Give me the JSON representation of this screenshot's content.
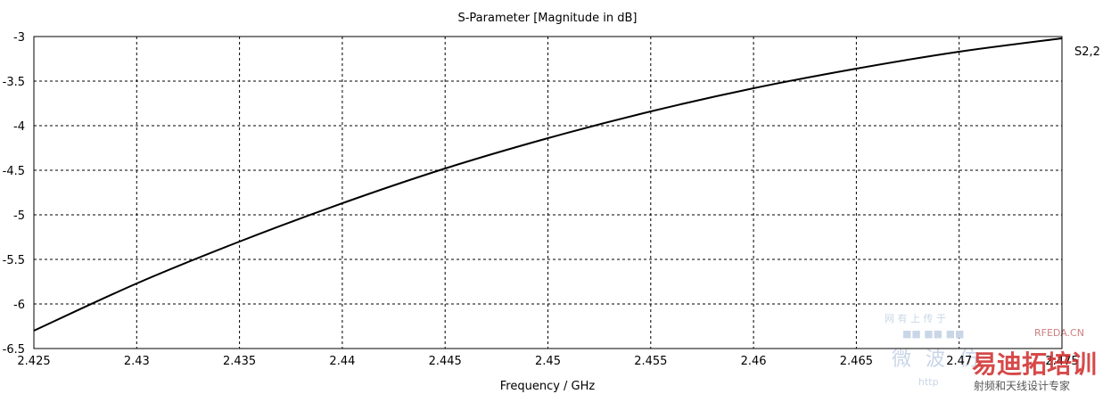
{
  "chart_data": {
    "type": "line",
    "title": "S-Parameter [Magnitude in dB]",
    "xlabel": "Frequency / GHz",
    "ylabel": "",
    "xlim": [
      2.425,
      2.475
    ],
    "ylim": [
      -6.5,
      -3
    ],
    "xticks": [
      "2.425",
      "2.43",
      "2.435",
      "2.44",
      "2.445",
      "2.45",
      "2.455",
      "2.46",
      "2.465",
      "2.47",
      "2.475"
    ],
    "yticks": [
      "-3",
      "-3.5",
      "-4",
      "-4.5",
      "-5",
      "-5.5",
      "-6",
      "-6.5"
    ],
    "grid": true,
    "legend_position": "right-top",
    "series": [
      {
        "name": "S2,2",
        "color": "#000000",
        "x": [
          2.425,
          2.43,
          2.435,
          2.44,
          2.445,
          2.45,
          2.455,
          2.46,
          2.465,
          2.47,
          2.475
        ],
        "y": [
          -6.3,
          -5.77,
          -5.3,
          -4.87,
          -4.48,
          -4.14,
          -3.84,
          -3.58,
          -3.36,
          -3.17,
          -3.02
        ]
      }
    ]
  },
  "watermark": {
    "site": "RFEDA.CN",
    "brand": "易迪拓培训",
    "subtitle": "射频和天线设计专家",
    "cn_left": "微波仿",
    "cn_top": "网 有 上 传 于",
    "cn_top2": "■■ ■■ ■■",
    "url_fragment": "http"
  }
}
